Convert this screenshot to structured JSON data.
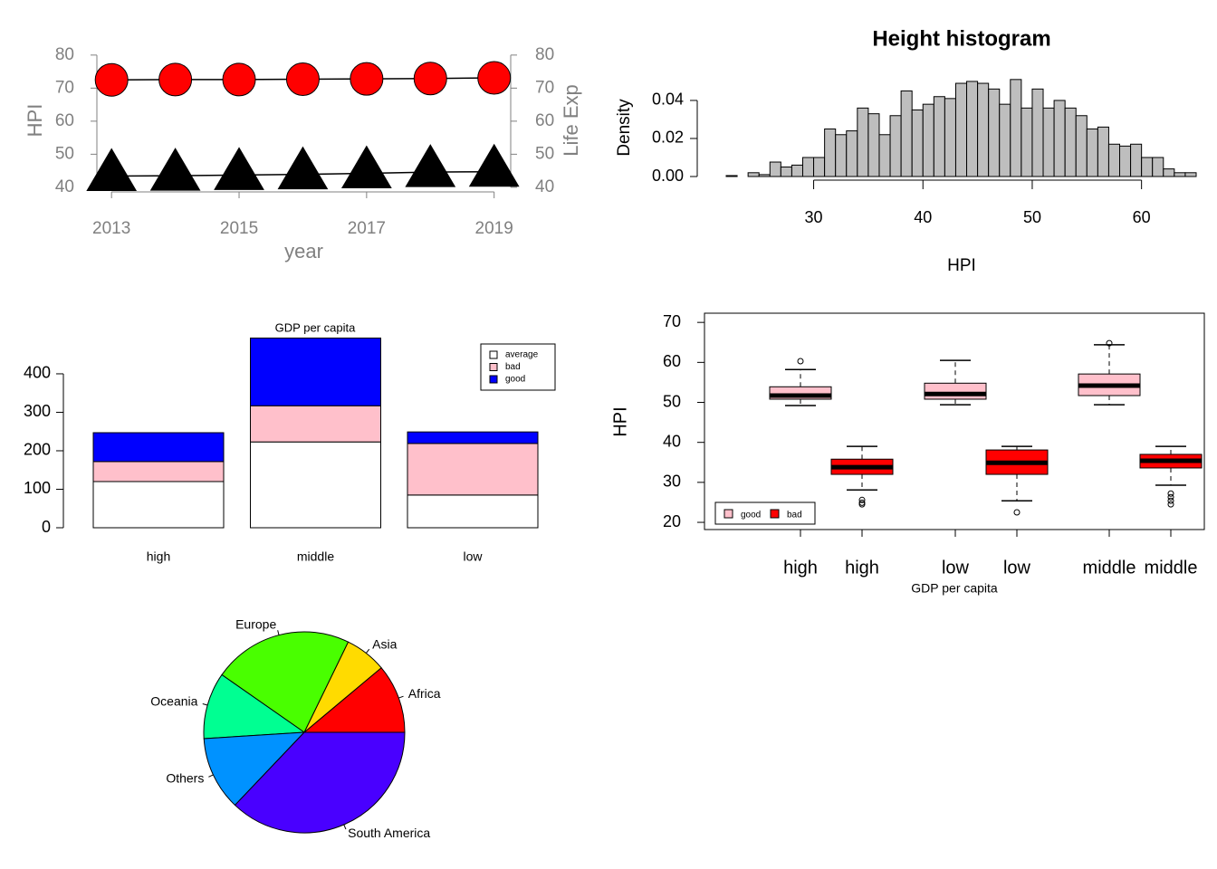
{
  "chart_data": [
    {
      "type": "line",
      "xlabel": "year",
      "ylabel": "HPI",
      "y2label": "Life Exp",
      "x": [
        2013,
        2014,
        2015,
        2016,
        2017,
        2018,
        2019
      ],
      "xlim": [
        2012.77,
        2019.26
      ],
      "xticks": [
        2013,
        2015,
        2017,
        2019
      ],
      "ylim": [
        38.6,
        81.6
      ],
      "yticks": [
        40,
        50,
        60,
        70,
        80
      ],
      "y2lim": [
        38.6,
        81.6
      ],
      "y2ticks": [
        40,
        50,
        60,
        70,
        80
      ],
      "axis_color": "#808080",
      "series": [
        {
          "color": "#ff0000",
          "marker": "circle",
          "values": [
            72.5,
            72.6,
            72.6,
            72.7,
            72.8,
            72.9,
            73.1
          ]
        },
        {
          "color": "#000000",
          "marker": "triangle",
          "axis": "y2",
          "values": [
            43.4,
            43.5,
            43.7,
            43.9,
            44.2,
            44.6,
            44.7
          ]
        }
      ]
    },
    {
      "type": "histogram",
      "title": "Height histogram",
      "xlabel": "HPI",
      "ylabel": "Density",
      "color": "#bebebe",
      "bins": [
        22,
        23,
        24,
        25,
        26,
        27,
        28,
        29,
        30,
        31,
        32,
        33,
        34,
        35,
        36,
        37,
        38,
        39,
        40,
        41,
        42,
        43,
        44,
        45,
        46,
        47,
        48,
        49,
        50,
        51,
        52,
        53,
        54,
        55,
        56,
        57,
        58,
        59,
        60,
        61,
        62,
        63,
        64,
        65
      ],
      "values": [
        0.0005,
        0,
        0.002,
        0.001,
        0.0076,
        0.005,
        0.006,
        0.01,
        0.01,
        0.025,
        0.022,
        0.024,
        0.036,
        0.033,
        0.022,
        0.032,
        0.045,
        0.035,
        0.038,
        0.042,
        0.041,
        0.049,
        0.05,
        0.049,
        0.046,
        0.038,
        0.051,
        0.036,
        0.046,
        0.036,
        0.04,
        0.036,
        0.032,
        0.025,
        0.026,
        0.017,
        0.016,
        0.017,
        0.01,
        0.01,
        0.004,
        0.002,
        0.002
      ],
      "xlim": [
        22,
        65
      ],
      "xticks": [
        30,
        40,
        50,
        60
      ],
      "ylim": [
        0,
        0.0533
      ],
      "yticks": [
        {
          "value": 0,
          "label": "0.00"
        },
        {
          "value": 0.02,
          "label": "0.02"
        },
        {
          "value": 0.04,
          "label": "0.04"
        }
      ]
    },
    {
      "type": "bar",
      "stacked": true,
      "title": "GDP per capita",
      "legend": "top-right",
      "categories": [
        "high",
        "middle",
        "low"
      ],
      "series": [
        {
          "name": "average",
          "color": "#ffffff",
          "values": [
            120,
            223,
            85
          ]
        },
        {
          "name": "bad",
          "color": "#ffc0cb",
          "values": [
            52,
            94,
            134
          ]
        },
        {
          "name": "good",
          "color": "#0000ff",
          "values": [
            75,
            176,
            30
          ]
        }
      ],
      "ylim": [
        0,
        494
      ],
      "yticks": [
        0,
        100,
        200,
        300,
        400
      ]
    },
    {
      "type": "box",
      "xlabel": "GDP per capita",
      "ylabel": "HPI",
      "legend": "bottom-left",
      "ylim": [
        18.2,
        72.3
      ],
      "yticks": [
        20,
        30,
        40,
        50,
        60,
        70
      ],
      "series": [
        {
          "name": "good",
          "color": "#ffc0cb"
        },
        {
          "name": "bad",
          "color": "#ff0000"
        }
      ],
      "boxes": [
        {
          "label": "high",
          "color": "#ffc0cb",
          "min": 49.2,
          "q1": 50.8,
          "median": 51.7,
          "q3": 53.9,
          "max": 58.2,
          "outliers": [
            60.3
          ]
        },
        {
          "label": "high",
          "color": "#ff0000",
          "min": 28.1,
          "q1": 32.0,
          "median": 33.8,
          "q3": 35.8,
          "max": 39.0,
          "outliers": [
            25.6,
            24.9,
            24.5
          ]
        },
        {
          "label": "low",
          "color": "#ffc0cb",
          "min": 49.4,
          "q1": 50.8,
          "median": 52.1,
          "q3": 54.8,
          "max": 60.5,
          "outliers": []
        },
        {
          "label": "low",
          "color": "#ff0000",
          "min": 25.4,
          "q1": 32.0,
          "median": 34.9,
          "q3": 38.1,
          "max": 39.0,
          "outliers": [
            22.5
          ]
        },
        {
          "label": "middle",
          "color": "#ffc0cb",
          "min": 49.4,
          "q1": 51.7,
          "median": 54.2,
          "q3": 57.1,
          "max": 64.4,
          "outliers": [
            64.8
          ]
        },
        {
          "label": "middle",
          "color": "#ff0000",
          "min": 29.3,
          "q1": 33.6,
          "median": 35.4,
          "q3": 37.0,
          "max": 39.0,
          "outliers": [
            27.2,
            26.3,
            25.4,
            24.5
          ]
        }
      ]
    },
    {
      "type": "pie",
      "labels": [
        "Africa",
        "Asia",
        "Europe",
        "Oceania",
        "Others",
        "South America"
      ],
      "values": [
        11.1,
        6.7,
        22.5,
        10.7,
        11.9,
        37.1
      ],
      "colors": [
        "#ff0000",
        "#ffdb00",
        "#49ff00",
        "#00ff92",
        "#0092ff",
        "#4900ff"
      ]
    }
  ]
}
